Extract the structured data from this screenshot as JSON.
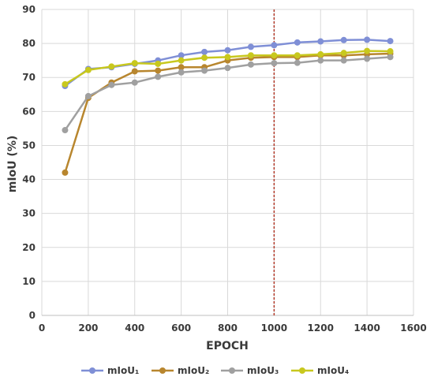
{
  "chart_data": {
    "type": "line",
    "title": "",
    "xlabel": "EPOCH",
    "ylabel": "mIoU (%)",
    "xlim": [
      0,
      1600
    ],
    "ylim": [
      0,
      90
    ],
    "xticks": [
      0,
      200,
      400,
      600,
      800,
      1000,
      1200,
      1400,
      1600
    ],
    "yticks": [
      0,
      10,
      20,
      30,
      40,
      50,
      60,
      70,
      80,
      90
    ],
    "grid": "horizontal and vertical",
    "legend_position": "bottom",
    "x": [
      100,
      200,
      300,
      400,
      500,
      600,
      700,
      800,
      900,
      1000,
      1100,
      1200,
      1300,
      1400,
      1500
    ],
    "series": [
      {
        "name": "mIoU₁",
        "color": "#7f8fd6",
        "values": [
          67.5,
          72.5,
          73.0,
          74.0,
          75.0,
          76.5,
          77.5,
          78.0,
          79.0,
          79.5,
          80.3,
          80.6,
          81.0,
          81.1,
          80.7
        ]
      },
      {
        "name": "mIoU₂",
        "color": "#b8862e",
        "values": [
          42.0,
          64.0,
          68.5,
          71.8,
          72.0,
          73.0,
          73.0,
          75.0,
          75.8,
          76.0,
          76.0,
          76.5,
          76.5,
          76.8,
          77.0
        ]
      },
      {
        "name": "mIoU₃",
        "color": "#a0a0a0",
        "values": [
          54.5,
          64.5,
          67.8,
          68.5,
          70.2,
          71.5,
          72.0,
          72.8,
          73.8,
          74.2,
          74.3,
          75.0,
          75.0,
          75.5,
          76.0
        ]
      },
      {
        "name": "mIoU₄",
        "color": "#c8c81e",
        "values": [
          68.0,
          72.2,
          73.2,
          74.2,
          74.0,
          75.0,
          75.8,
          76.0,
          76.5,
          76.5,
          76.5,
          76.8,
          77.2,
          77.8,
          77.7
        ]
      }
    ],
    "vertical_marker": {
      "x": 1000,
      "color": "#b23a2a",
      "style": "dashed"
    }
  }
}
